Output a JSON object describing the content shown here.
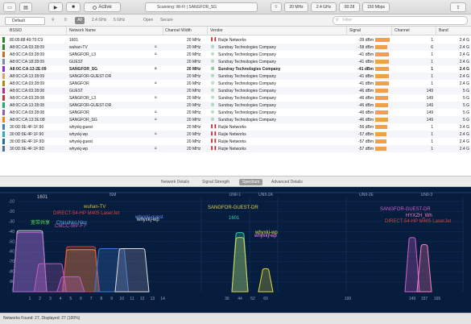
{
  "toolbar": {
    "active_label": "Active",
    "status": "Scanning: Wi-Fi | SANGFOR_SG",
    "channel_width": "20 MHz",
    "band": "2.4 GHz",
    "time": "00:28",
    "rate": "150 Mbps"
  },
  "filterbar": {
    "profile": "Default",
    "count": "0",
    "all_label": "All",
    "band_24": "2.4 GHz",
    "band_5": "5 GHz",
    "open_label": "Open",
    "secure_label": "Secure",
    "filter_placeholder": "Filter"
  },
  "table": {
    "headers": [
      "BSSID",
      "Network Name",
      "Channel Width",
      "Vendor",
      "Signal",
      "Channel",
      "Band"
    ],
    "rows": [
      {
        "bssid": "80:05:88:49:70:C9",
        "name": "1601",
        "width": "20 MHz",
        "vendor": "Ruijie Networks",
        "signal": "-39 dBm",
        "bar": 18,
        "channel": "1",
        "band": "2.4 G",
        "color": "#1e8a1e",
        "lock": false,
        "vendor_type": "ruijie",
        "bold": false
      },
      {
        "bssid": "A8:0C:CA:03:28:09",
        "name": "wuhan-TV",
        "width": "20 MHz",
        "vendor": "Sundray Technologies Company",
        "signal": "-58 dBm",
        "bar": 15,
        "channel": "6",
        "band": "2.4 G",
        "color": "#2a8a2a",
        "lock": true,
        "vendor_type": "sundray",
        "bold": false
      },
      {
        "bssid": "A8:0C:CA:03:28:09",
        "name": "SANGFOR_L3",
        "width": "20 MHz",
        "vendor": "Sundray Technologies Company",
        "signal": "-41 dBm",
        "bar": 17,
        "channel": "1",
        "band": "2.4 G",
        "color": "#d2691e",
        "lock": true,
        "vendor_type": "sundray",
        "bold": false
      },
      {
        "bssid": "A8:0C:CA:18:28:09",
        "name": "GUEST",
        "width": "20 MHz",
        "vendor": "Sundray Technologies Company",
        "signal": "-41 dBm",
        "bar": 17,
        "channel": "1",
        "band": "2.4 G",
        "color": "#7a8aa8",
        "lock": false,
        "vendor_type": "sundray",
        "bold": false
      },
      {
        "bssid": "A8:0C:CA:13:2E:09",
        "name": "SANGFOR_SG",
        "width": "20 MHz",
        "vendor": "Sundray Technologies Company",
        "signal": "-41 dBm",
        "bar": 17,
        "channel": "1",
        "band": "2.4 G",
        "color": "#8a2be2",
        "lock": true,
        "vendor_type": "sundray",
        "bold": true
      },
      {
        "bssid": "A8:0C:CA:13:28:09",
        "name": "SANGFOR-GUEST-DR",
        "width": "20 MHz",
        "vendor": "Sundray Technologies Company",
        "signal": "-41 dBm",
        "bar": 17,
        "channel": "1",
        "band": "2.4 G",
        "color": "#e8a060",
        "lock": false,
        "vendor_type": "sundray",
        "bold": false
      },
      {
        "bssid": "A8:0C:CA:03:28:09",
        "name": "SANGFOR",
        "width": "20 MHz",
        "vendor": "Sundray Technologies Company",
        "signal": "-41 dBm",
        "bar": 17,
        "channel": "1",
        "band": "2.4 G",
        "color": "#b8860b",
        "lock": true,
        "vendor_type": "sundray",
        "bold": false
      },
      {
        "bssid": "A8:0C:CA:03:28:08",
        "name": "GUEST",
        "width": "20 MHz",
        "vendor": "Sundray Technologies Company",
        "signal": "-46 dBm",
        "bar": 16,
        "channel": "149",
        "band": "5 G",
        "color": "#d02090",
        "lock": false,
        "vendor_type": "sundray",
        "bold": false
      },
      {
        "bssid": "A8:0C:CA:03:28:08",
        "name": "SANGFOR_L3",
        "width": "20 MHz",
        "vendor": "Sundray Technologies Company",
        "signal": "-46 dBm",
        "bar": 16,
        "channel": "149",
        "band": "5 G",
        "color": "#cc3333",
        "lock": true,
        "vendor_type": "sundray",
        "bold": false
      },
      {
        "bssid": "A8:0C:CA:13:28:08",
        "name": "SANGFOR-GUEST-DR",
        "width": "20 MHz",
        "vendor": "Sundray Technologies Company",
        "signal": "-46 dBm",
        "bar": 16,
        "channel": "149",
        "band": "5 G",
        "color": "#22aa66",
        "lock": false,
        "vendor_type": "sundray",
        "bold": false
      },
      {
        "bssid": "A8:0C:CA:03:28:08",
        "name": "SANGFOR",
        "width": "20 MHz",
        "vendor": "Sundray Technologies Company",
        "signal": "-46 dBm",
        "bar": 16,
        "channel": "149",
        "band": "5 G",
        "color": "#9b59b6",
        "lock": true,
        "vendor_type": "sundray",
        "bold": false
      },
      {
        "bssid": "A8:0C:CA:13:2E:08",
        "name": "SANGFOR_SG",
        "width": "20 MHz",
        "vendor": "Sundray Technologies Company",
        "signal": "-46 dBm",
        "bar": 16,
        "channel": "149",
        "band": "5 G",
        "color": "#ff7f00",
        "lock": true,
        "vendor_type": "sundray",
        "bold": false
      },
      {
        "bssid": "30:0D:9E:4F:1F:90",
        "name": "whyxkj-guest",
        "width": "20 MHz",
        "vendor": "Ruijie Networks",
        "signal": "-56 dBm",
        "bar": 15,
        "channel": "1",
        "band": "2.4 G",
        "color": "#3a7bd5",
        "lock": false,
        "vendor_type": "ruijie",
        "bold": false
      },
      {
        "bssid": "30:0D:9E:4F:1F:90",
        "name": "whyxkj-wp",
        "width": "20 MHz",
        "vendor": "Ruijie Networks",
        "signal": "-57 dBm",
        "bar": 14,
        "channel": "1",
        "band": "2.4 G",
        "color": "#2fa8c8",
        "lock": true,
        "vendor_type": "ruijie",
        "bold": false
      },
      {
        "bssid": "30:0D:9E:4F:1F:9D",
        "name": "whyxkj-guest",
        "width": "20 MHz",
        "vendor": "Ruijie Networks",
        "signal": "-57 dBm",
        "bar": 14,
        "channel": "1",
        "band": "2.4 G",
        "color": "#1f6fb0",
        "lock": false,
        "vendor_type": "ruijie",
        "bold": false
      },
      {
        "bssid": "30:0D:9E:4F:1F:9D",
        "name": "whyxkj-wp",
        "width": "20 MHz",
        "vendor": "Ruijie Networks",
        "signal": "-57 dBm",
        "bar": 14,
        "channel": "1",
        "band": "2.4 G",
        "color": "#4a6fa5",
        "lock": true,
        "vendor_type": "ruijie",
        "bold": false
      }
    ]
  },
  "tabs": [
    "Network Details",
    "Signal Strength",
    "Spectrum",
    "Advanced Details"
  ],
  "active_tab_index": 2,
  "chart_data": {
    "type": "area",
    "title": "",
    "bands": [
      "ISM",
      "UNII-1",
      "UNII-2A",
      "UNII-2E",
      "UNII-3"
    ],
    "ylim": [
      -100,
      -10
    ],
    "y_ticks": [
      -10,
      -20,
      -30,
      -40,
      -50,
      -60,
      -70,
      -80,
      -90
    ],
    "x_ticks_24": [
      "1",
      "2",
      "3",
      "4",
      "5",
      "6",
      "7",
      "8",
      "9",
      "10",
      "11",
      "12",
      "13",
      "14"
    ],
    "x_ticks_5": [
      "36",
      "44",
      "52",
      "60",
      "100",
      "149",
      "157",
      "165"
    ],
    "labels": [
      {
        "text": "1601",
        "color": "#c8c8c8"
      },
      {
        "text": "wuhan-TV",
        "color": "#d4c040"
      },
      {
        "text": "DIRECT-54-HP M405 LaserJet",
        "color": "#e04040"
      },
      {
        "text": "whyxkj-guest",
        "color": "#7090ff"
      },
      {
        "text": "whyxkj-wp",
        "color": "#e0e0e0"
      },
      {
        "text": "ChinaNet-Nkq",
        "color": "#50b0e0"
      },
      {
        "text": "CMCC-WP-F7",
        "color": "#c060c0"
      },
      {
        "text": "宽带共享",
        "color": "#50e050"
      },
      {
        "text": "SANGFOR-GUEST-DR",
        "color": "#e0d050"
      },
      {
        "text": "1601",
        "color": "#30d0b0"
      },
      {
        "text": "whyxkj-wp",
        "color": "#e0e040"
      },
      {
        "text": "whyxkj-wp",
        "color": "#ff80ff"
      },
      {
        "text": "SANGFOR-GUEST-DR",
        "color": "#d060d0"
      },
      {
        "text": "HYXZH_Wh",
        "color": "#ff80c0"
      },
      {
        "text": "DIRECT-54-HP M405 LaserJet",
        "color": "#e04040"
      }
    ]
  },
  "statusbar": {
    "text": "Networks Found: 27, Displayed: 27 (100%)"
  }
}
